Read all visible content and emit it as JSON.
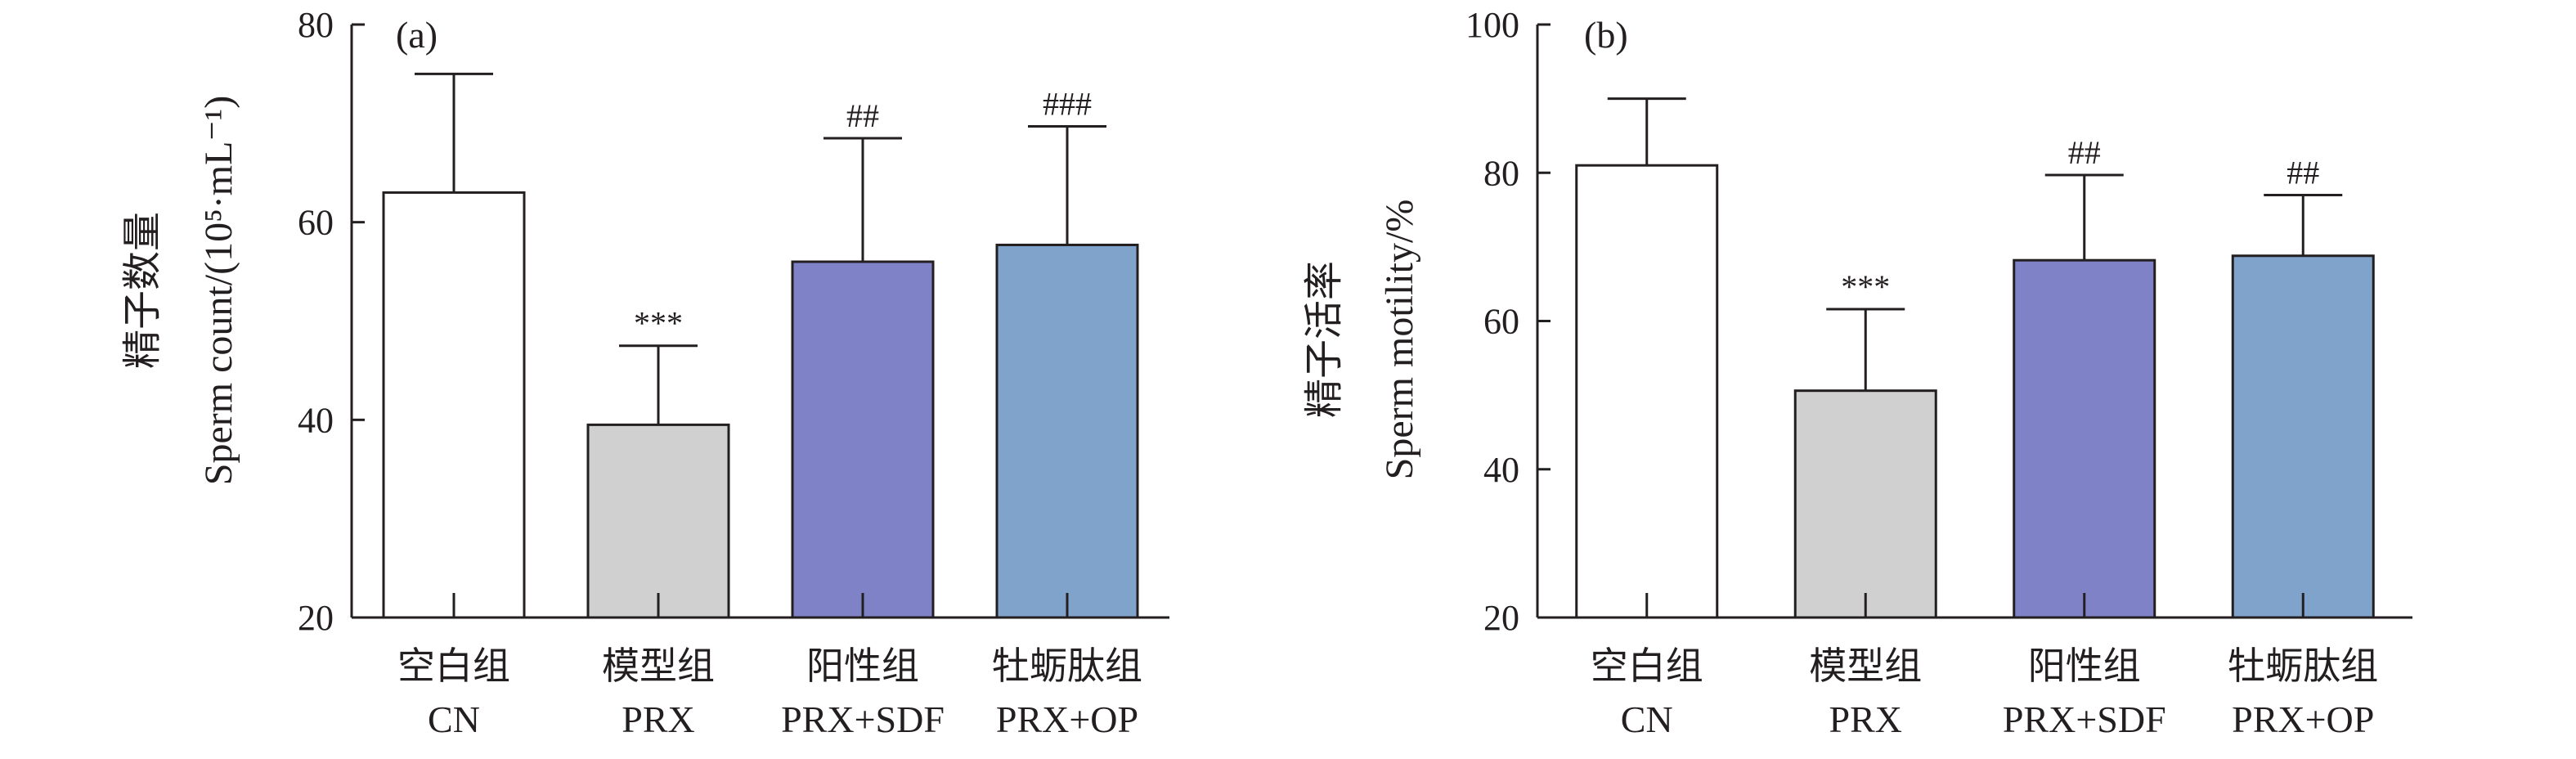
{
  "colors": {
    "CN": "#ffffff",
    "PRX": "#cfd0cf",
    "PRX+SDF": "#7f82c7",
    "PRX+OP": "#80a3cb",
    "stroke": "#231f20"
  },
  "chart_data": [
    {
      "type": "bar",
      "panel_label": "(a)",
      "categories": [
        "CN",
        "PRX",
        "PRX+SDF",
        "PRX+OP"
      ],
      "categories_cn": [
        "空白组",
        "模型组",
        "阳性组",
        "牡蛎肽组"
      ],
      "values": [
        63,
        39.5,
        56,
        57.7
      ],
      "errors": [
        12,
        8,
        12.5,
        12
      ],
      "significance": [
        "",
        "***",
        "##",
        "###"
      ],
      "ylabel_cn": "精子数量",
      "ylabel_en": "Sperm count/(10⁵·mL⁻¹)",
      "ylim": [
        20,
        80
      ],
      "yticks": [
        20,
        40,
        60,
        80
      ],
      "grid": false
    },
    {
      "type": "bar",
      "panel_label": "(b)",
      "categories": [
        "CN",
        "PRX",
        "PRX+SDF",
        "PRX+OP"
      ],
      "categories_cn": [
        "空白组",
        "模型组",
        "阳性组",
        "牡蛎肽组"
      ],
      "values": [
        81,
        50.6,
        68.2,
        68.8
      ],
      "errors": [
        9,
        11,
        11.5,
        8.2
      ],
      "significance": [
        "",
        "***",
        "##",
        "##"
      ],
      "ylabel_cn": "精子活率",
      "ylabel_en": "Sperm motility/%",
      "ylim": [
        20,
        100
      ],
      "yticks": [
        20,
        40,
        60,
        80,
        100
      ],
      "grid": false
    }
  ]
}
